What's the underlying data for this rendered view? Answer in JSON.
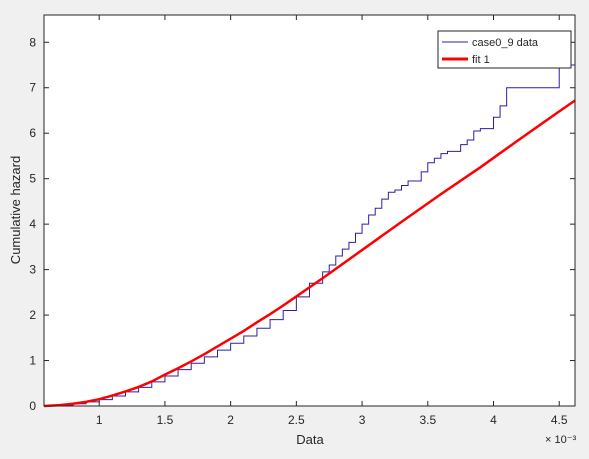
{
  "chart_data": {
    "type": "line",
    "title": "",
    "xlabel": "Data",
    "ylabel": "Cumulative hazard",
    "x_exponent_label": "× 10⁻³",
    "xlim": [
      0.00058,
      0.00462
    ],
    "ylim": [
      0,
      8.6
    ],
    "x_scale_factor": 0.001,
    "x_ticks": [
      0.001,
      0.0015,
      0.002,
      0.0025,
      0.003,
      0.0035,
      0.004,
      0.0045
    ],
    "x_tick_labels": [
      "1",
      "1.5",
      "2",
      "2.5",
      "3",
      "3.5",
      "4",
      "4.5"
    ],
    "y_ticks": [
      0,
      1,
      2,
      3,
      4,
      5,
      6,
      7,
      8
    ],
    "y_tick_labels": [
      "0",
      "1",
      "2",
      "3",
      "4",
      "5",
      "6",
      "7",
      "8"
    ],
    "grid": false,
    "legend_position": "top-right",
    "series": [
      {
        "name": "case0_9 data",
        "color": "#2b1fa8",
        "style": "stairs",
        "x": [
          0.00058,
          0.0007,
          0.0008,
          0.0009,
          0.001,
          0.0011,
          0.0012,
          0.0013,
          0.0014,
          0.0015,
          0.0016,
          0.0017,
          0.0018,
          0.0019,
          0.002,
          0.0021,
          0.0022,
          0.0023,
          0.0024,
          0.0025,
          0.0026,
          0.0027,
          0.00275,
          0.0028,
          0.00285,
          0.0029,
          0.00295,
          0.003,
          0.00305,
          0.0031,
          0.00315,
          0.0032,
          0.00325,
          0.0033,
          0.00335,
          0.0034,
          0.00345,
          0.0035,
          0.00355,
          0.0036,
          0.00365,
          0.0037,
          0.00375,
          0.0038,
          0.00385,
          0.0039,
          0.004,
          0.00405,
          0.0041,
          0.00415,
          0.0042,
          0.0045,
          0.00462
        ],
        "y": [
          0,
          0.02,
          0.05,
          0.09,
          0.14,
          0.22,
          0.31,
          0.41,
          0.53,
          0.66,
          0.8,
          0.94,
          1.08,
          1.23,
          1.38,
          1.54,
          1.71,
          1.9,
          2.1,
          2.4,
          2.7,
          2.95,
          3.1,
          3.3,
          3.45,
          3.6,
          3.8,
          4.0,
          4.2,
          4.35,
          4.55,
          4.7,
          4.75,
          4.85,
          4.95,
          4.95,
          5.15,
          5.35,
          5.45,
          5.55,
          5.6,
          5.6,
          5.75,
          5.85,
          6.05,
          6.1,
          6.35,
          6.6,
          7.0,
          7.0,
          7.0,
          7.5,
          8.4
        ]
      },
      {
        "name": "fit 1",
        "color": "#ff0000",
        "style": "line",
        "x": [
          0.00058,
          0.0007,
          0.0008,
          0.0009,
          0.001,
          0.0011,
          0.0012,
          0.0013,
          0.0014,
          0.0015,
          0.0016,
          0.0017,
          0.0018,
          0.0019,
          0.002,
          0.0021,
          0.0022,
          0.0023,
          0.0024,
          0.0025,
          0.0027,
          0.003,
          0.0033,
          0.0036,
          0.0039,
          0.0042,
          0.0045,
          0.00462
        ],
        "y": [
          0,
          0.02,
          0.05,
          0.09,
          0.15,
          0.23,
          0.32,
          0.42,
          0.54,
          0.69,
          0.83,
          0.98,
          1.14,
          1.31,
          1.48,
          1.65,
          1.84,
          2.02,
          2.21,
          2.41,
          2.81,
          3.43,
          4.05,
          4.66,
          5.25,
          5.87,
          6.48,
          6.72
        ]
      }
    ]
  }
}
